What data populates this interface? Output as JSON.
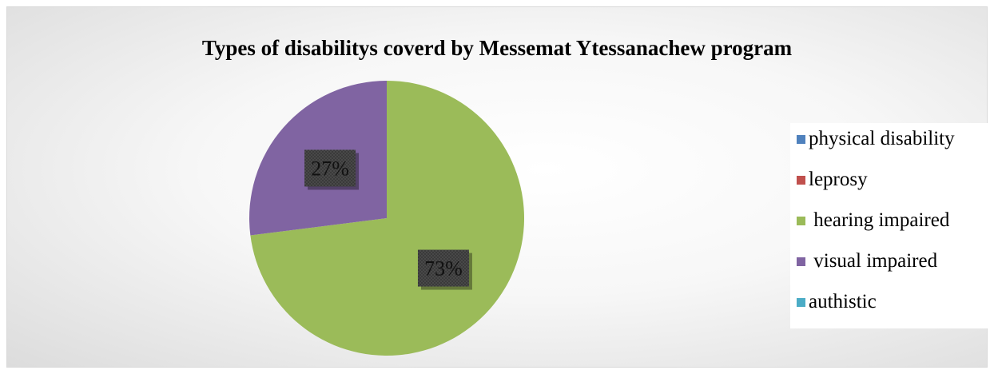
{
  "chart_data": {
    "type": "pie",
    "title": "Types of disabilitys coverd by Messemat Ytessanachew program",
    "legend_position": "right",
    "slices": [
      {
        "label": "physical disability",
        "value": 0,
        "color": "#4f81bd"
      },
      {
        "label": "leprosy",
        "value": 0,
        "color": "#c0504d"
      },
      {
        "label": " hearing impaired",
        "value": 73,
        "color": "#9bbb59"
      },
      {
        "label": " visual impaired",
        "value": 27,
        "color": "#8064a2"
      },
      {
        "label": "authistic",
        "value": 0,
        "color": "#4bacc6"
      }
    ],
    "data_labels": [
      "73%",
      "27%"
    ]
  }
}
